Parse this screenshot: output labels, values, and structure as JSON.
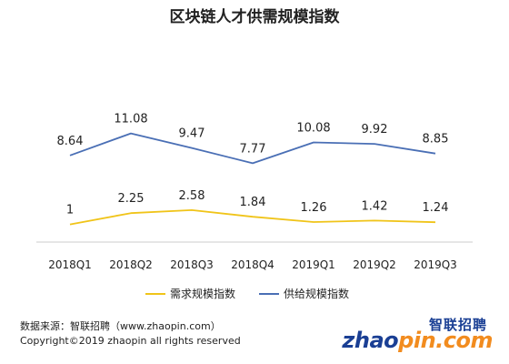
{
  "chart_data": {
    "type": "line",
    "title": "区块链人才供需规模指数",
    "categories": [
      "2018Q1",
      "2018Q2",
      "2018Q3",
      "2018Q4",
      "2019Q1",
      "2019Q2",
      "2019Q3"
    ],
    "series": [
      {
        "name": "需求规模指数",
        "color": "#f0c419",
        "values": [
          1,
          2.25,
          2.58,
          1.84,
          1.26,
          1.42,
          1.24
        ],
        "labels": [
          "1",
          "2.25",
          "2.58",
          "1.84",
          "1.26",
          "1.42",
          "1.24"
        ]
      },
      {
        "name": "供给规模指数",
        "color": "#4a6fb5",
        "values": [
          8.64,
          11.08,
          9.47,
          7.77,
          10.08,
          9.92,
          8.85
        ],
        "labels": [
          "8.64",
          "11.08",
          "9.47",
          "7.77",
          "10.08",
          "9.92",
          "8.85"
        ]
      }
    ],
    "legend_position": "bottom",
    "grid": false
  },
  "source": "数据来源：智联招聘（www.zhaopin.com）",
  "copyright": "Copyright©2019 zhaopin all rights reserved",
  "logo": {
    "brand_cn": "智联招聘",
    "brand_en_part1": "zhao",
    "brand_en_part2": "pin.com"
  }
}
